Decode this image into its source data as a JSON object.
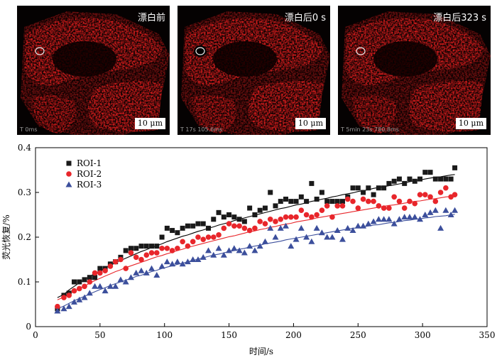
{
  "panels": [
    {
      "title": "漂白前",
      "scale_bar": "10 μm",
      "timestamp": "T 0ms"
    },
    {
      "title": "漂白后0 s",
      "scale_bar": "10 μm",
      "timestamp": "T 17s 105.6ms"
    },
    {
      "title": "漂白后323 s",
      "scale_bar": "10 μm",
      "timestamp": "T 5min 23s 780.8ms"
    }
  ],
  "chart_data": {
    "type": "scatter",
    "xlabel": "时间/s",
    "ylabel": "荧光恢复/%",
    "xlim": [
      0,
      350
    ],
    "ylim": [
      0,
      0.4
    ],
    "xticks": [
      0,
      50,
      100,
      150,
      200,
      250,
      300,
      350
    ],
    "yticks": [
      0,
      0.1,
      0.2,
      0.3,
      0.4
    ],
    "xtick_labels": [
      "0",
      "50",
      "100",
      "150",
      "200",
      "250",
      "300",
      "350"
    ],
    "ytick_labels": [
      "0",
      "0.1",
      "0.2",
      "0.3",
      "0.4"
    ],
    "legend_position": "top-left",
    "x": [
      17,
      22,
      26,
      30,
      34,
      38,
      42,
      46,
      50,
      54,
      58,
      62,
      66,
      70,
      74,
      78,
      82,
      86,
      90,
      94,
      98,
      102,
      106,
      110,
      114,
      118,
      122,
      126,
      130,
      134,
      138,
      142,
      146,
      150,
      154,
      158,
      162,
      166,
      170,
      174,
      178,
      182,
      186,
      190,
      194,
      198,
      202,
      206,
      210,
      214,
      218,
      222,
      226,
      230,
      234,
      238,
      242,
      246,
      250,
      254,
      258,
      262,
      266,
      270,
      274,
      278,
      282,
      286,
      290,
      294,
      298,
      302,
      306,
      310,
      314,
      318,
      322,
      325
    ],
    "series": [
      {
        "name": "ROI-1",
        "marker": "square",
        "color": "#1a1a1a",
        "values": [
          0.04,
          0.07,
          0.075,
          0.1,
          0.1,
          0.105,
          0.11,
          0.11,
          0.13,
          0.13,
          0.14,
          0.145,
          0.155,
          0.17,
          0.175,
          0.175,
          0.18,
          0.18,
          0.18,
          0.18,
          0.2,
          0.22,
          0.215,
          0.21,
          0.22,
          0.225,
          0.225,
          0.23,
          0.23,
          0.22,
          0.24,
          0.255,
          0.245,
          0.25,
          0.245,
          0.24,
          0.235,
          0.265,
          0.25,
          0.26,
          0.265,
          0.3,
          0.27,
          0.28,
          0.285,
          0.28,
          0.28,
          0.29,
          0.28,
          0.32,
          0.285,
          0.3,
          0.28,
          0.28,
          0.28,
          0.28,
          0.29,
          0.31,
          0.31,
          0.3,
          0.31,
          0.295,
          0.31,
          0.31,
          0.32,
          0.325,
          0.33,
          0.32,
          0.33,
          0.325,
          0.33,
          0.345,
          0.345,
          0.33,
          0.33,
          0.33,
          0.33,
          0.355
        ],
        "fit": [
          0.065,
          0.072,
          0.082,
          0.09,
          0.098,
          0.105,
          0.112,
          0.119,
          0.125,
          0.131,
          0.137,
          0.143,
          0.148,
          0.153,
          0.158,
          0.163,
          0.168,
          0.172,
          0.177,
          0.181,
          0.185,
          0.19,
          0.194,
          0.198,
          0.202,
          0.205,
          0.209,
          0.213,
          0.216,
          0.22,
          0.223,
          0.227,
          0.23,
          0.233,
          0.237,
          0.24,
          0.243,
          0.246,
          0.249,
          0.252,
          0.255,
          0.258,
          0.261,
          0.264,
          0.266,
          0.269,
          0.272,
          0.274,
          0.277,
          0.28,
          0.282,
          0.285,
          0.287,
          0.29,
          0.292,
          0.295,
          0.297,
          0.299,
          0.302,
          0.304,
          0.306,
          0.309,
          0.311,
          0.313,
          0.315,
          0.317,
          0.319,
          0.321,
          0.324,
          0.326,
          0.328,
          0.33,
          0.332,
          0.334,
          0.335,
          0.337,
          0.339,
          0.34
        ]
      },
      {
        "name": "ROI-2",
        "marker": "circle",
        "color": "#e8262b",
        "values": [
          0.045,
          0.065,
          0.07,
          0.08,
          0.085,
          0.09,
          0.1,
          0.12,
          0.12,
          0.125,
          0.135,
          0.145,
          0.15,
          0.13,
          0.165,
          0.155,
          0.15,
          0.16,
          0.165,
          0.165,
          0.175,
          0.175,
          0.17,
          0.175,
          0.19,
          0.18,
          0.19,
          0.2,
          0.195,
          0.2,
          0.2,
          0.205,
          0.22,
          0.23,
          0.225,
          0.225,
          0.22,
          0.215,
          0.22,
          0.235,
          0.23,
          0.24,
          0.235,
          0.24,
          0.245,
          0.245,
          0.245,
          0.26,
          0.25,
          0.245,
          0.25,
          0.26,
          0.27,
          0.245,
          0.27,
          0.27,
          0.285,
          0.28,
          0.265,
          0.285,
          0.28,
          0.28,
          0.27,
          0.265,
          0.265,
          0.29,
          0.28,
          0.265,
          0.28,
          0.275,
          0.295,
          0.295,
          0.29,
          0.28,
          0.3,
          0.31,
          0.29,
          0.295
        ],
        "fit": [
          0.06,
          0.066,
          0.072,
          0.079,
          0.085,
          0.091,
          0.097,
          0.103,
          0.108,
          0.113,
          0.118,
          0.123,
          0.127,
          0.132,
          0.136,
          0.14,
          0.144,
          0.148,
          0.152,
          0.156,
          0.159,
          0.163,
          0.166,
          0.17,
          0.173,
          0.177,
          0.18,
          0.183,
          0.186,
          0.189,
          0.192,
          0.195,
          0.198,
          0.201,
          0.203,
          0.206,
          0.209,
          0.212,
          0.214,
          0.217,
          0.219,
          0.222,
          0.224,
          0.227,
          0.229,
          0.231,
          0.234,
          0.236,
          0.238,
          0.24,
          0.243,
          0.245,
          0.247,
          0.249,
          0.251,
          0.253,
          0.255,
          0.257,
          0.259,
          0.261,
          0.263,
          0.265,
          0.267,
          0.269,
          0.271,
          0.272,
          0.274,
          0.276,
          0.278,
          0.28,
          0.281,
          0.283,
          0.285,
          0.286,
          0.288,
          0.29,
          0.291,
          0.292
        ]
      },
      {
        "name": "ROI-3",
        "marker": "triangle",
        "color": "#3c4f9c",
        "values": [
          0.035,
          0.04,
          0.045,
          0.055,
          0.06,
          0.065,
          0.075,
          0.09,
          0.09,
          0.08,
          0.09,
          0.09,
          0.105,
          0.1,
          0.11,
          0.12,
          0.125,
          0.12,
          0.13,
          0.115,
          0.135,
          0.145,
          0.14,
          0.145,
          0.14,
          0.145,
          0.15,
          0.15,
          0.155,
          0.17,
          0.16,
          0.175,
          0.16,
          0.17,
          0.175,
          0.17,
          0.165,
          0.18,
          0.17,
          0.18,
          0.19,
          0.22,
          0.2,
          0.22,
          0.225,
          0.18,
          0.195,
          0.22,
          0.2,
          0.19,
          0.22,
          0.21,
          0.2,
          0.2,
          0.215,
          0.195,
          0.22,
          0.215,
          0.225,
          0.225,
          0.23,
          0.235,
          0.24,
          0.24,
          0.24,
          0.23,
          0.24,
          0.245,
          0.245,
          0.245,
          0.24,
          0.25,
          0.255,
          0.26,
          0.22,
          0.26,
          0.25,
          0.26
        ],
        "fit": [
          0.04,
          0.046,
          0.052,
          0.058,
          0.063,
          0.068,
          0.073,
          0.078,
          0.083,
          0.087,
          0.092,
          0.096,
          0.1,
          0.104,
          0.108,
          0.112,
          0.115,
          0.119,
          0.123,
          0.126,
          0.13,
          0.133,
          0.136,
          0.139,
          0.142,
          0.145,
          0.148,
          0.151,
          0.154,
          0.157,
          0.16,
          0.162,
          0.165,
          0.168,
          0.17,
          0.173,
          0.175,
          0.178,
          0.18,
          0.182,
          0.185,
          0.187,
          0.189,
          0.191,
          0.194,
          0.196,
          0.198,
          0.2,
          0.202,
          0.204,
          0.206,
          0.208,
          0.21,
          0.212,
          0.214,
          0.216,
          0.218,
          0.22,
          0.221,
          0.223,
          0.225,
          0.227,
          0.228,
          0.23,
          0.232,
          0.233,
          0.235,
          0.237,
          0.238,
          0.24,
          0.241,
          0.243,
          0.244,
          0.246,
          0.247,
          0.248,
          0.25,
          0.251
        ]
      }
    ]
  }
}
